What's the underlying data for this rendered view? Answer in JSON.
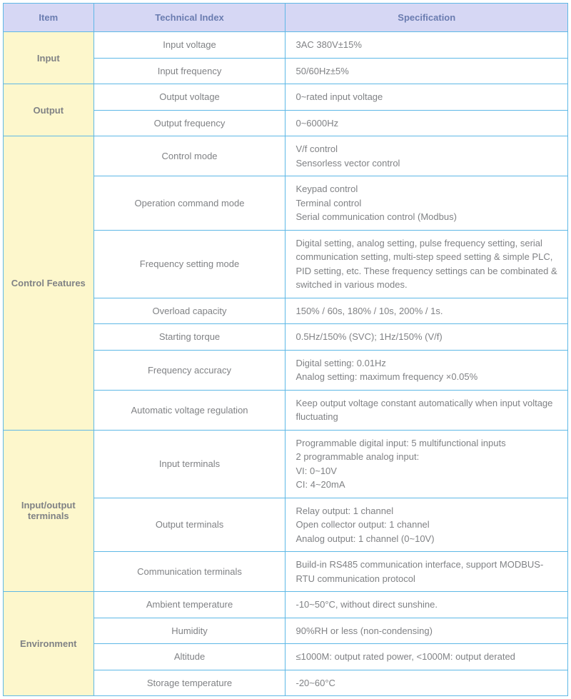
{
  "headers": {
    "item": "Item",
    "tech": "Technical Index",
    "spec": "Specification"
  },
  "sections": [
    {
      "item": "Input",
      "rows": [
        {
          "tech": "Input voltage",
          "spec": "3AC 380V±15%"
        },
        {
          "tech": "Input frequency",
          "spec": "50/60Hz±5%"
        }
      ]
    },
    {
      "item": "Output",
      "rows": [
        {
          "tech": "Output voltage",
          "spec": "0~rated input voltage"
        },
        {
          "tech": "Output frequency",
          "spec": "0~6000Hz"
        }
      ]
    },
    {
      "item": "Control Features",
      "rows": [
        {
          "tech": "Control mode",
          "spec": "V/f control\nSensorless vector control"
        },
        {
          "tech": "Operation command mode",
          "spec": "Keypad control\nTerminal control\nSerial communication control (Modbus)"
        },
        {
          "tech": "Frequency setting mode",
          "spec": "Digital setting, analog setting, pulse frequency setting, serial communication setting, multi-step speed setting & simple PLC, PID setting, etc. These frequency settings can be combinated & switched in various modes."
        },
        {
          "tech": "Overload capacity",
          "spec": "150% / 60s, 180% / 10s, 200% / 1s."
        },
        {
          "tech": "Starting torque",
          "spec": "0.5Hz/150% (SVC); 1Hz/150% (V/f)"
        },
        {
          "tech": "Frequency accuracy",
          "spec": "Digital setting: 0.01Hz\nAnalog setting: maximum frequency ×0.05%"
        },
        {
          "tech": "Automatic voltage regulation",
          "spec": "Keep output voltage constant automatically when input voltage fluctuating"
        }
      ]
    },
    {
      "item": "Input/output terminals",
      "rows": [
        {
          "tech": "Input terminals",
          "spec": "Programmable digital input: 5 multifunctional inputs\n2 programmable analog input:\nVI: 0~10V\nCI: 4~20mA"
        },
        {
          "tech": "Output terminals",
          "spec": "Relay output: 1 channel\nOpen collector output: 1 channel\nAnalog output: 1 channel (0~10V)"
        },
        {
          "tech": "Communication terminals",
          "spec": "Build-in RS485 communication interface, support MODBUS-RTU communication protocol"
        }
      ]
    },
    {
      "item": "Environment",
      "rows": [
        {
          "tech": "Ambient temperature",
          "spec": "-10~50°C, without direct sunshine."
        },
        {
          "tech": "Humidity",
          "spec": "90%RH or less (non-condensing)"
        },
        {
          "tech": "Altitude",
          "spec": "≤1000M: output rated power, <1000M: output derated"
        },
        {
          "tech": "Storage temperature",
          "spec": "-20~60°C"
        }
      ]
    }
  ],
  "style": {
    "type": "table",
    "border_color": "#5eb8e6",
    "header_bg": "#d6d7f4",
    "header_text_color": "#6a7cb0",
    "item_bg": "#fdf7cc",
    "body_text_color": "#808285",
    "background_color": "#ffffff",
    "font_size_pt": 10,
    "column_widths_pct": [
      16,
      34,
      50
    ]
  }
}
